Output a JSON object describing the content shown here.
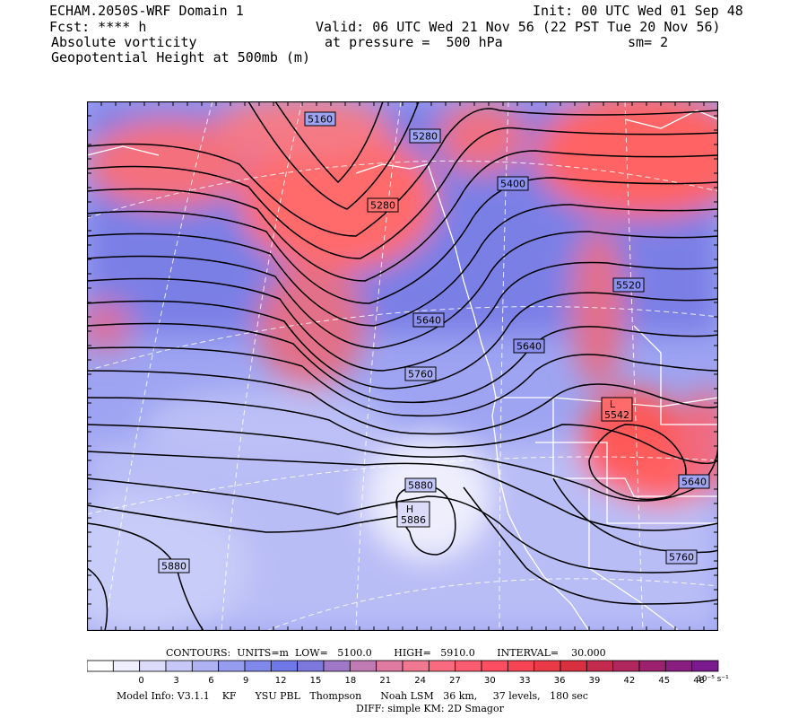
{
  "header": {
    "model": "ECHAM.2050S-WRF Domain 1",
    "fcst": "Fcst: **** h",
    "init": "Init: 00 UTC Wed 01 Sep 48",
    "valid": "Valid: 06 UTC Wed 21 Nov 56 (22 PST Tue 20 Nov 56)",
    "field1": "Absolute vorticity",
    "pressure": "at pressure =  500 hPa",
    "sm": "sm= 2",
    "field2": "Geopotential Height at 500mb (m)"
  },
  "map": {
    "contours": [
      {
        "label": "5160"
      },
      {
        "label": "5280"
      },
      {
        "label": "5280"
      },
      {
        "label": "5400"
      },
      {
        "label": "5520"
      },
      {
        "label": "5640"
      },
      {
        "label": "5640"
      },
      {
        "label": "5760"
      },
      {
        "label": "5880"
      },
      {
        "label": "5880"
      },
      {
        "label": "5640"
      },
      {
        "label": "5760"
      }
    ],
    "centers": [
      {
        "symbol": "L",
        "value": "5542"
      },
      {
        "symbol": "H",
        "value": "5886"
      }
    ],
    "colors": {
      "positive": "#ff6060",
      "negative": "#6070ee",
      "background": "#b8bef5"
    }
  },
  "footer": {
    "contours_info": "CONTOURS:  UNITS=m  LOW=   5100.0       HIGH=   5910.0       INTERVAL=    30.000",
    "colorbar_ticks": [
      "0",
      "3",
      "6",
      "9",
      "12",
      "15",
      "18",
      "21",
      "24",
      "27",
      "30",
      "33",
      "36",
      "39",
      "42",
      "45",
      "48"
    ],
    "colorbar_unit": "10⁻⁵ s⁻¹",
    "colorbar_colors": [
      "#ffffff",
      "#efeffd",
      "#dcdcfa",
      "#c6c8f7",
      "#aeb2f3",
      "#969cef",
      "#8088ec",
      "#7078e8",
      "#7c78de",
      "#a078c8",
      "#c07ab4",
      "#e07aa0",
      "#f07890",
      "#f86a80",
      "#fc5c70",
      "#ff4e62",
      "#f74455",
      "#ea3a48",
      "#d8303e",
      "#c42a4e",
      "#b0265e",
      "#9c2270",
      "#8a1e80",
      "#7a1a8e"
    ],
    "model_info": "Model Info: V3.1.1    KF      YSU PBL   Thompson      Noah LSM   36 km,     37 levels,   180 sec",
    "diff_info": "DIFF: simple KM: 2D Smagor"
  }
}
